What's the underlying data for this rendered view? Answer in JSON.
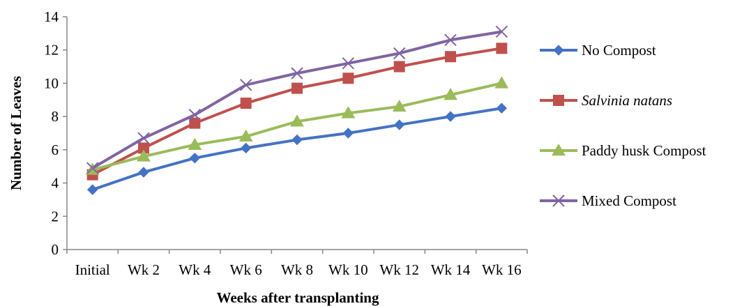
{
  "chart_data": {
    "type": "line",
    "xlabel": "Weeks after transplanting",
    "ylabel": "Number of Leaves",
    "ylim": [
      0,
      14
    ],
    "yticks": [
      0,
      2,
      4,
      6,
      8,
      10,
      12,
      14
    ],
    "grid": false,
    "legend_position": "right",
    "categories": [
      "Initial",
      "Wk 2",
      "Wk 4",
      "Wk 6",
      "Wk 8",
      "Wk 10",
      "Wk 12",
      "Wk 14",
      "Wk 16"
    ],
    "series": [
      {
        "name": "No Compost",
        "color": "#4472C4",
        "marker": "diamond",
        "italic": false,
        "values": [
          3.6,
          4.65,
          5.5,
          6.1,
          6.6,
          7.0,
          7.5,
          8.0,
          8.5
        ]
      },
      {
        "name": "Salvinia natans",
        "color": "#C0504D",
        "marker": "square",
        "italic": true,
        "values": [
          4.5,
          6.1,
          7.6,
          8.8,
          9.7,
          10.3,
          11.0,
          11.6,
          12.1
        ]
      },
      {
        "name": "Paddy husk Compost",
        "color": "#9BBB59",
        "marker": "triangle",
        "italic": false,
        "values": [
          4.8,
          5.6,
          6.3,
          6.8,
          7.7,
          8.2,
          8.6,
          9.3,
          10.0
        ]
      },
      {
        "name": "Mixed Compost",
        "color": "#8064A2",
        "marker": "x",
        "italic": false,
        "values": [
          4.9,
          6.7,
          8.1,
          9.9,
          10.6,
          11.2,
          11.8,
          12.6,
          13.1
        ]
      }
    ]
  }
}
